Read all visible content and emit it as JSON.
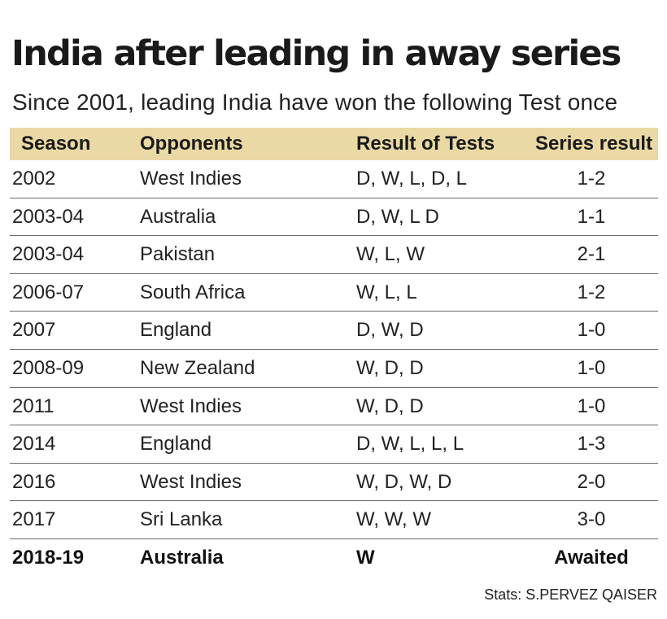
{
  "title": "India after leading in away series",
  "subtitle": "Since 2001, leading India have won the following Test once",
  "credit": "Stats: S.PERVEZ QAISER",
  "colors": {
    "header_band": "#ead9a4",
    "text": "#1a1a1a",
    "divider": "#6a6a6a"
  },
  "chart_data": {
    "type": "table",
    "title": "India after leading in away series",
    "subtitle": "Since 2001, leading India have won the following Test once",
    "columns": [
      "Season",
      "Opponents",
      "Result of Tests",
      "Series result"
    ],
    "rows": [
      [
        "2002",
        "West Indies",
        "D, W, L, D, L",
        "1-2"
      ],
      [
        "2003-04",
        "Australia",
        "D, W, L D",
        "1-1"
      ],
      [
        "2003-04",
        "Pakistan",
        "W, L, W",
        "2-1"
      ],
      [
        "2006-07",
        "South Africa",
        "W, L, L",
        "1-2"
      ],
      [
        "2007",
        "England",
        "D, W, D",
        "1-0"
      ],
      [
        "2008-09",
        "New Zealand",
        "W, D, D",
        "1-0"
      ],
      [
        "2011",
        "West Indies",
        "W, D, D",
        "1-0"
      ],
      [
        "2014",
        "England",
        "D, W, L, L, L",
        "1-3"
      ],
      [
        "2016",
        "West Indies",
        "W, D, W, D",
        "2-0"
      ],
      [
        "2017",
        "Sri Lanka",
        "W, W, W",
        "3-0"
      ],
      [
        "2018-19",
        "Australia",
        "W",
        "Awaited"
      ]
    ],
    "highlighted_row": 10,
    "source": "Stats: S.PERVEZ QAISER"
  }
}
